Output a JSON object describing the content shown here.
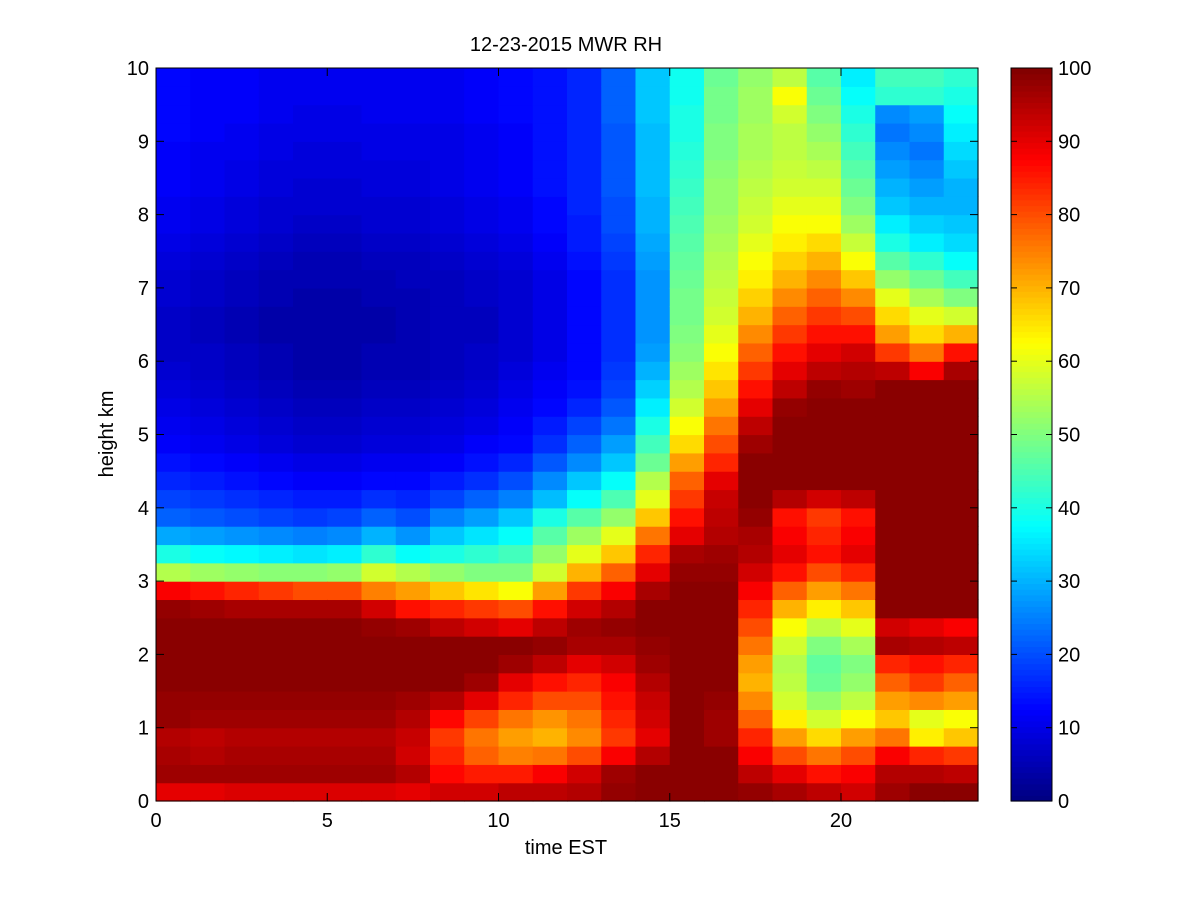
{
  "chart_data": {
    "type": "heatmap",
    "title": "12-23-2015 MWR RH",
    "xlabel": "time EST",
    "ylabel": "height km",
    "xlim": [
      0,
      24
    ],
    "ylim": [
      0,
      10
    ],
    "xticks": [
      0,
      5,
      10,
      15,
      20
    ],
    "yticks": [
      0,
      1,
      2,
      3,
      4,
      5,
      6,
      7,
      8,
      9,
      10
    ],
    "colorbar": {
      "range": [
        0,
        100
      ],
      "ticks": [
        0,
        10,
        20,
        30,
        40,
        50,
        60,
        70,
        80,
        90,
        100
      ],
      "colormap": "jet"
    },
    "grid": false,
    "time_bins_hours": [
      0,
      1,
      2,
      3,
      4,
      5,
      6,
      7,
      8,
      9,
      10,
      11,
      12,
      13,
      14,
      15,
      16,
      17,
      18,
      19,
      20,
      21,
      22,
      23
    ],
    "height_levels_km": [
      0,
      0.25,
      0.5,
      0.75,
      1,
      1.25,
      1.5,
      1.75,
      2,
      2.25,
      2.5,
      2.75,
      3,
      3.25,
      3.5,
      3.75,
      4,
      4.25,
      4.5,
      4.75,
      5,
      5.25,
      5.5,
      5.75,
      6,
      6.25,
      6.5,
      6.75,
      7,
      7.25,
      7.5,
      7.75,
      8,
      8.25,
      8.5,
      8.75,
      9,
      9.25,
      9.5,
      9.75
    ],
    "rh_percent_by_time": [
      [
        90,
        97,
        96,
        95,
        98,
        98,
        99,
        99,
        99,
        99,
        98,
        88,
        55,
        40,
        29,
        22,
        19,
        16,
        14,
        12,
        11,
        10,
        9,
        8,
        7,
        7,
        7,
        8,
        8,
        9,
        10,
        11,
        11,
        12,
        12,
        12,
        13,
        13,
        13,
        13
      ],
      [
        90,
        97,
        95,
        94,
        97,
        98,
        99,
        99,
        99,
        99,
        97,
        86,
        53,
        38,
        28,
        21,
        18,
        15,
        13,
        11,
        10,
        9,
        8,
        7,
        7,
        6,
        6,
        7,
        7,
        8,
        9,
        10,
        10,
        11,
        11,
        11,
        12,
        12,
        12,
        12
      ],
      [
        91,
        97,
        96,
        95,
        97,
        98,
        99,
        99,
        99,
        99,
        96,
        84,
        52,
        37,
        27,
        20,
        17,
        14,
        12,
        10,
        9,
        8,
        7,
        6,
        6,
        5,
        5,
        6,
        6,
        7,
        8,
        9,
        9,
        10,
        10,
        11,
        11,
        12,
        12,
        12
      ],
      [
        91,
        97,
        96,
        95,
        97,
        98,
        99,
        99,
        99,
        99,
        96,
        82,
        51,
        36,
        26,
        19,
        16,
        13,
        11,
        9,
        8,
        7,
        6,
        5,
        5,
        4,
        4,
        5,
        5,
        6,
        7,
        8,
        8,
        9,
        9,
        10,
        10,
        11,
        11,
        11
      ],
      [
        91,
        97,
        96,
        95,
        97,
        98,
        99,
        99,
        99,
        99,
        96,
        80,
        51,
        35,
        25,
        18,
        15,
        12,
        10,
        8,
        7,
        6,
        5,
        4,
        4,
        4,
        4,
        4,
        5,
        5,
        6,
        7,
        8,
        8,
        9,
        9,
        10,
        10,
        11,
        11
      ],
      [
        91,
        97,
        96,
        95,
        97,
        98,
        99,
        99,
        99,
        99,
        96,
        80,
        52,
        36,
        26,
        19,
        15,
        12,
        10,
        8,
        7,
        6,
        5,
        4,
        4,
        4,
        4,
        4,
        5,
        5,
        6,
        7,
        8,
        8,
        9,
        9,
        10,
        10,
        11,
        11
      ],
      [
        91,
        97,
        96,
        95,
        97,
        98,
        99,
        99,
        99,
        98,
        92,
        75,
        58,
        42,
        30,
        22,
        17,
        13,
        11,
        9,
        8,
        7,
        6,
        5,
        5,
        4,
        4,
        5,
        5,
        6,
        7,
        8,
        8,
        9,
        9,
        10,
        10,
        11,
        11,
        11
      ],
      [
        90,
        95,
        92,
        93,
        95,
        97,
        99,
        99,
        99,
        97,
        86,
        72,
        55,
        38,
        27,
        20,
        16,
        13,
        11,
        9,
        8,
        7,
        6,
        5,
        5,
        5,
        5,
        5,
        6,
        6,
        7,
        8,
        8,
        9,
        9,
        10,
        10,
        11,
        11,
        11
      ],
      [
        92,
        87,
        84,
        82,
        87,
        95,
        99,
        99,
        99,
        94,
        84,
        68,
        52,
        40,
        32,
        25,
        19,
        15,
        12,
        10,
        9,
        8,
        7,
        6,
        6,
        6,
        6,
        6,
        6,
        7,
        8,
        9,
        9,
        10,
        10,
        10,
        10,
        11,
        11,
        11
      ],
      [
        92,
        85,
        78,
        76,
        81,
        90,
        97,
        99,
        99,
        92,
        82,
        65,
        50,
        42,
        35,
        28,
        22,
        17,
        14,
        12,
        10,
        9,
        8,
        7,
        7,
        6,
        6,
        7,
        7,
        8,
        9,
        10,
        10,
        11,
        11,
        11,
        11,
        12,
        12,
        12
      ],
      [
        94,
        85,
        75,
        72,
        76,
        84,
        90,
        97,
        99,
        90,
        80,
        62,
        50,
        44,
        38,
        32,
        25,
        20,
        16,
        13,
        12,
        11,
        10,
        9,
        8,
        8,
        8,
        8,
        8,
        9,
        10,
        11,
        11,
        12,
        12,
        12,
        12,
        13,
        13,
        13
      ],
      [
        94,
        88,
        76,
        70,
        73,
        80,
        86,
        94,
        98,
        94,
        86,
        72,
        58,
        52,
        46,
        40,
        31,
        26,
        21,
        17,
        15,
        13,
        12,
        11,
        10,
        10,
        10,
        10,
        10,
        11,
        12,
        13,
        13,
        14,
        14,
        14,
        14,
        14,
        14,
        14
      ],
      [
        95,
        92,
        80,
        74,
        76,
        80,
        84,
        90,
        96,
        97,
        92,
        82,
        70,
        60,
        53,
        46,
        38,
        32,
        26,
        22,
        19,
        16,
        14,
        13,
        13,
        13,
        13,
        13,
        13,
        14,
        15,
        15,
        16,
        16,
        16,
        16,
        16,
        16,
        16,
        16
      ],
      [
        98,
        97,
        88,
        82,
        84,
        86,
        88,
        92,
        96,
        98,
        95,
        88,
        78,
        68,
        60,
        52,
        45,
        38,
        32,
        28,
        24,
        21,
        19,
        18,
        17,
        17,
        17,
        17,
        17,
        18,
        19,
        20,
        20,
        21,
        21,
        21,
        21,
        22,
        22,
        22
      ],
      [
        99,
        99,
        95,
        90,
        92,
        93,
        95,
        97,
        98,
        99,
        99,
        96,
        90,
        84,
        76,
        68,
        60,
        55,
        48,
        44,
        40,
        36,
        33,
        30,
        28,
        27,
        27,
        27,
        27,
        28,
        29,
        30,
        30,
        31,
        31,
        31,
        31,
        32,
        32,
        32
      ],
      [
        99,
        99,
        99,
        99,
        99,
        99,
        99,
        99,
        99,
        99,
        99,
        99,
        98,
        96,
        90,
        86,
        82,
        78,
        72,
        66,
        62,
        58,
        55,
        53,
        51,
        50,
        49,
        49,
        48,
        47,
        46,
        45,
        44,
        43,
        42,
        41,
        40,
        40,
        39,
        39
      ],
      [
        99,
        99,
        99,
        97,
        97,
        98,
        99,
        99,
        99,
        99,
        99,
        99,
        98,
        97,
        95,
        94,
        93,
        90,
        84,
        80,
        76,
        72,
        68,
        65,
        62,
        60,
        58,
        57,
        56,
        55,
        54,
        53,
        52,
        52,
        51,
        50,
        50,
        49,
        49,
        48
      ],
      [
        98,
        94,
        88,
        84,
        78,
        74,
        70,
        72,
        76,
        80,
        84,
        88,
        92,
        95,
        96,
        98,
        99,
        99,
        99,
        97,
        94,
        90,
        86,
        82,
        78,
        74,
        70,
        67,
        64,
        62,
        60,
        58,
        57,
        56,
        55,
        54,
        54,
        53,
        53,
        52
      ],
      [
        96,
        90,
        80,
        72,
        64,
        58,
        56,
        55,
        58,
        62,
        70,
        78,
        86,
        90,
        88,
        86,
        95,
        99,
        99,
        99,
        99,
        98,
        94,
        90,
        86,
        82,
        78,
        74,
        70,
        67,
        64,
        62,
        60,
        58,
        57,
        56,
        56,
        58,
        62,
        56
      ],
      [
        94,
        86,
        76,
        66,
        58,
        52,
        48,
        47,
        50,
        56,
        64,
        72,
        80,
        86,
        84,
        82,
        92,
        99,
        99,
        99,
        99,
        99,
        98,
        94,
        90,
        86,
        82,
        78,
        74,
        70,
        66,
        62,
        60,
        58,
        56,
        54,
        52,
        50,
        48,
        46
      ],
      [
        92,
        88,
        80,
        72,
        62,
        56,
        52,
        50,
        54,
        60,
        68,
        76,
        84,
        90,
        88,
        86,
        94,
        99,
        99,
        99,
        99,
        99,
        97,
        95,
        92,
        86,
        80,
        74,
        68,
        62,
        57,
        53,
        50,
        48,
        46,
        44,
        42,
        40,
        38,
        36
      ],
      [
        97,
        95,
        88,
        76,
        68,
        72,
        78,
        84,
        96,
        92,
        99,
        99,
        99,
        99,
        99,
        99,
        99,
        99,
        99,
        99,
        99,
        99,
        99,
        94,
        82,
        72,
        66,
        60,
        52,
        46,
        40,
        36,
        32,
        30,
        28,
        26,
        24,
        26,
        42,
        44
      ],
      [
        99,
        95,
        84,
        64,
        60,
        74,
        82,
        86,
        95,
        90,
        99,
        99,
        99,
        99,
        99,
        99,
        99,
        99,
        99,
        99,
        99,
        99,
        99,
        88,
        76,
        66,
        60,
        54,
        48,
        42,
        36,
        33,
        30,
        28,
        26,
        24,
        26,
        28,
        42,
        44
      ],
      [
        99,
        94,
        82,
        68,
        62,
        72,
        78,
        84,
        94,
        88,
        99,
        99,
        99,
        99,
        99,
        99,
        99,
        99,
        99,
        99,
        99,
        99,
        99,
        96,
        86,
        70,
        58,
        50,
        44,
        38,
        34,
        32,
        30,
        30,
        32,
        34,
        36,
        38,
        40,
        42
      ]
    ]
  }
}
